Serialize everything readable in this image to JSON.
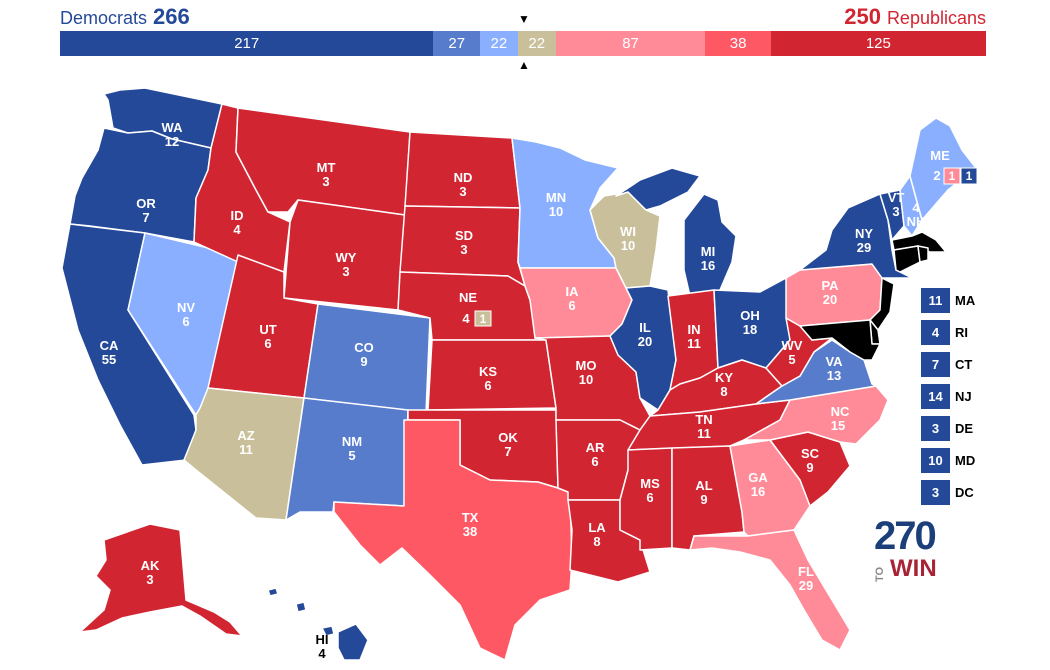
{
  "header": {
    "dem_label": "Democrats",
    "dem_total": "266",
    "rep_total": "250",
    "rep_label": "Republicans"
  },
  "colors": {
    "safe_dem": "#244999",
    "likely_dem": "#577ccc",
    "lean_dem": "#8aafff",
    "tossup": "#c9c09b",
    "lean_rep": "#ff8b98",
    "likely_rep": "#ff5865",
    "safe_rep": "#d22532"
  },
  "bar": [
    {
      "value": 217,
      "label": "217",
      "rating": "safe_dem"
    },
    {
      "value": 27,
      "label": "27",
      "rating": "likely_dem"
    },
    {
      "value": 22,
      "label": "22",
      "rating": "lean_dem"
    },
    {
      "value": 22,
      "label": "22",
      "rating": "tossup"
    },
    {
      "value": 87,
      "label": "87",
      "rating": "lean_rep"
    },
    {
      "value": 38,
      "label": "38",
      "rating": "likely_rep"
    },
    {
      "value": 125,
      "label": "125",
      "rating": "safe_rep"
    }
  ],
  "markers": {
    "top": "▼",
    "bottom": "▲"
  },
  "states": {
    "WA": {
      "abbr": "WA",
      "ev": "12",
      "rating": "safe_dem"
    },
    "OR": {
      "abbr": "OR",
      "ev": "7",
      "rating": "safe_dem"
    },
    "CA": {
      "abbr": "CA",
      "ev": "55",
      "rating": "safe_dem"
    },
    "NV": {
      "abbr": "NV",
      "ev": "6",
      "rating": "lean_dem"
    },
    "ID": {
      "abbr": "ID",
      "ev": "4",
      "rating": "safe_rep"
    },
    "MT": {
      "abbr": "MT",
      "ev": "3",
      "rating": "safe_rep"
    },
    "WY": {
      "abbr": "WY",
      "ev": "3",
      "rating": "safe_rep"
    },
    "UT": {
      "abbr": "UT",
      "ev": "6",
      "rating": "safe_rep"
    },
    "AZ": {
      "abbr": "AZ",
      "ev": "11",
      "rating": "tossup"
    },
    "CO": {
      "abbr": "CO",
      "ev": "9",
      "rating": "likely_dem"
    },
    "NM": {
      "abbr": "NM",
      "ev": "5",
      "rating": "likely_dem"
    },
    "ND": {
      "abbr": "ND",
      "ev": "3",
      "rating": "safe_rep"
    },
    "SD": {
      "abbr": "SD",
      "ev": "3",
      "rating": "safe_rep"
    },
    "NE": {
      "abbr": "NE",
      "ev": "4",
      "rating": "safe_rep",
      "district": "1",
      "district_rating": "tossup"
    },
    "KS": {
      "abbr": "KS",
      "ev": "6",
      "rating": "safe_rep"
    },
    "OK": {
      "abbr": "OK",
      "ev": "7",
      "rating": "safe_rep"
    },
    "TX": {
      "abbr": "TX",
      "ev": "38",
      "rating": "likely_rep"
    },
    "MN": {
      "abbr": "MN",
      "ev": "10",
      "rating": "lean_dem"
    },
    "IA": {
      "abbr": "IA",
      "ev": "6",
      "rating": "lean_rep"
    },
    "MO": {
      "abbr": "MO",
      "ev": "10",
      "rating": "safe_rep"
    },
    "AR": {
      "abbr": "AR",
      "ev": "6",
      "rating": "safe_rep"
    },
    "LA": {
      "abbr": "LA",
      "ev": "8",
      "rating": "safe_rep"
    },
    "WI": {
      "abbr": "WI",
      "ev": "10",
      "rating": "tossup"
    },
    "IL": {
      "abbr": "IL",
      "ev": "20",
      "rating": "safe_dem"
    },
    "MI": {
      "abbr": "MI",
      "ev": "16",
      "rating": "safe_dem"
    },
    "IN": {
      "abbr": "IN",
      "ev": "11",
      "rating": "safe_rep"
    },
    "OH": {
      "abbr": "OH",
      "ev": "18",
      "rating": "safe_dem"
    },
    "KY": {
      "abbr": "KY",
      "ev": "8",
      "rating": "safe_rep"
    },
    "TN": {
      "abbr": "TN",
      "ev": "11",
      "rating": "safe_rep"
    },
    "MS": {
      "abbr": "MS",
      "ev": "6",
      "rating": "safe_rep"
    },
    "AL": {
      "abbr": "AL",
      "ev": "9",
      "rating": "safe_rep"
    },
    "GA": {
      "abbr": "GA",
      "ev": "16",
      "rating": "lean_rep"
    },
    "FL": {
      "abbr": "FL",
      "ev": "29",
      "rating": "lean_rep"
    },
    "SC": {
      "abbr": "SC",
      "ev": "9",
      "rating": "safe_rep"
    },
    "NC": {
      "abbr": "NC",
      "ev": "15",
      "rating": "lean_rep"
    },
    "VA": {
      "abbr": "VA",
      "ev": "13",
      "rating": "likely_dem"
    },
    "WV": {
      "abbr": "WV",
      "ev": "5",
      "rating": "safe_rep"
    },
    "PA": {
      "abbr": "PA",
      "ev": "20",
      "rating": "lean_rep"
    },
    "NY": {
      "abbr": "NY",
      "ev": "29",
      "rating": "safe_dem"
    },
    "VT": {
      "abbr": "VT",
      "ev": "3",
      "rating": "safe_dem"
    },
    "NH": {
      "abbr": "NH",
      "ev": "4",
      "rating": "lean_dem"
    },
    "ME": {
      "abbr": "ME",
      "ev": "2",
      "rating": "lean_dem",
      "d1": "1",
      "d1_rating": "lean_rep",
      "d2": "1",
      "d2_rating": "safe_dem"
    },
    "AK": {
      "abbr": "AK",
      "ev": "3",
      "rating": "safe_rep"
    },
    "HI": {
      "abbr": "HI",
      "ev": "4",
      "rating": "safe_dem"
    }
  },
  "small_states": [
    {
      "abbr": "MA",
      "ev": "11",
      "rating": "safe_dem"
    },
    {
      "abbr": "RI",
      "ev": "4",
      "rating": "safe_dem"
    },
    {
      "abbr": "CT",
      "ev": "7",
      "rating": "safe_dem"
    },
    {
      "abbr": "NJ",
      "ev": "14",
      "rating": "safe_dem"
    },
    {
      "abbr": "DE",
      "ev": "3",
      "rating": "safe_dem"
    },
    {
      "abbr": "MD",
      "ev": "10",
      "rating": "safe_dem"
    },
    {
      "abbr": "DC",
      "ev": "3",
      "rating": "safe_dem"
    }
  ],
  "logo": {
    "number": "270",
    "to": "TO",
    "win": "WIN"
  }
}
